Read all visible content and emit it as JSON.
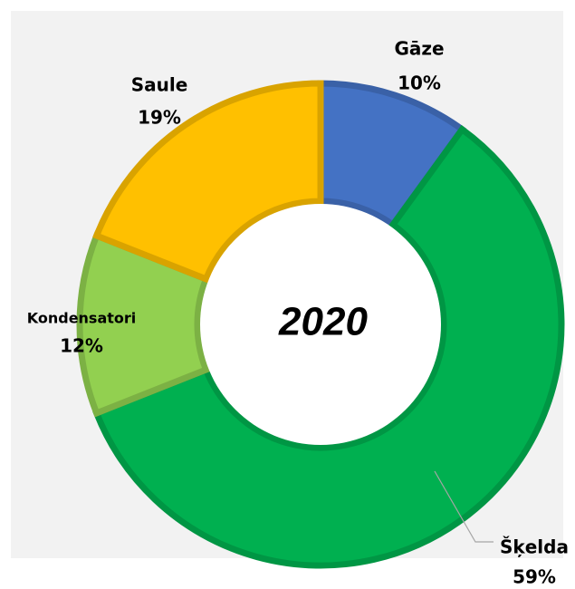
{
  "chart_data": {
    "type": "donut",
    "title": "2020",
    "categories": [
      "Gāze",
      "Šķelda",
      "Kondensatori",
      "Saule"
    ],
    "values": [
      10,
      59,
      12,
      19
    ],
    "value_labels": [
      "10%",
      "59%",
      "12%",
      "19%"
    ],
    "colors": [
      "#4472c4",
      "#00b050",
      "#92d050",
      "#ffc000"
    ]
  }
}
